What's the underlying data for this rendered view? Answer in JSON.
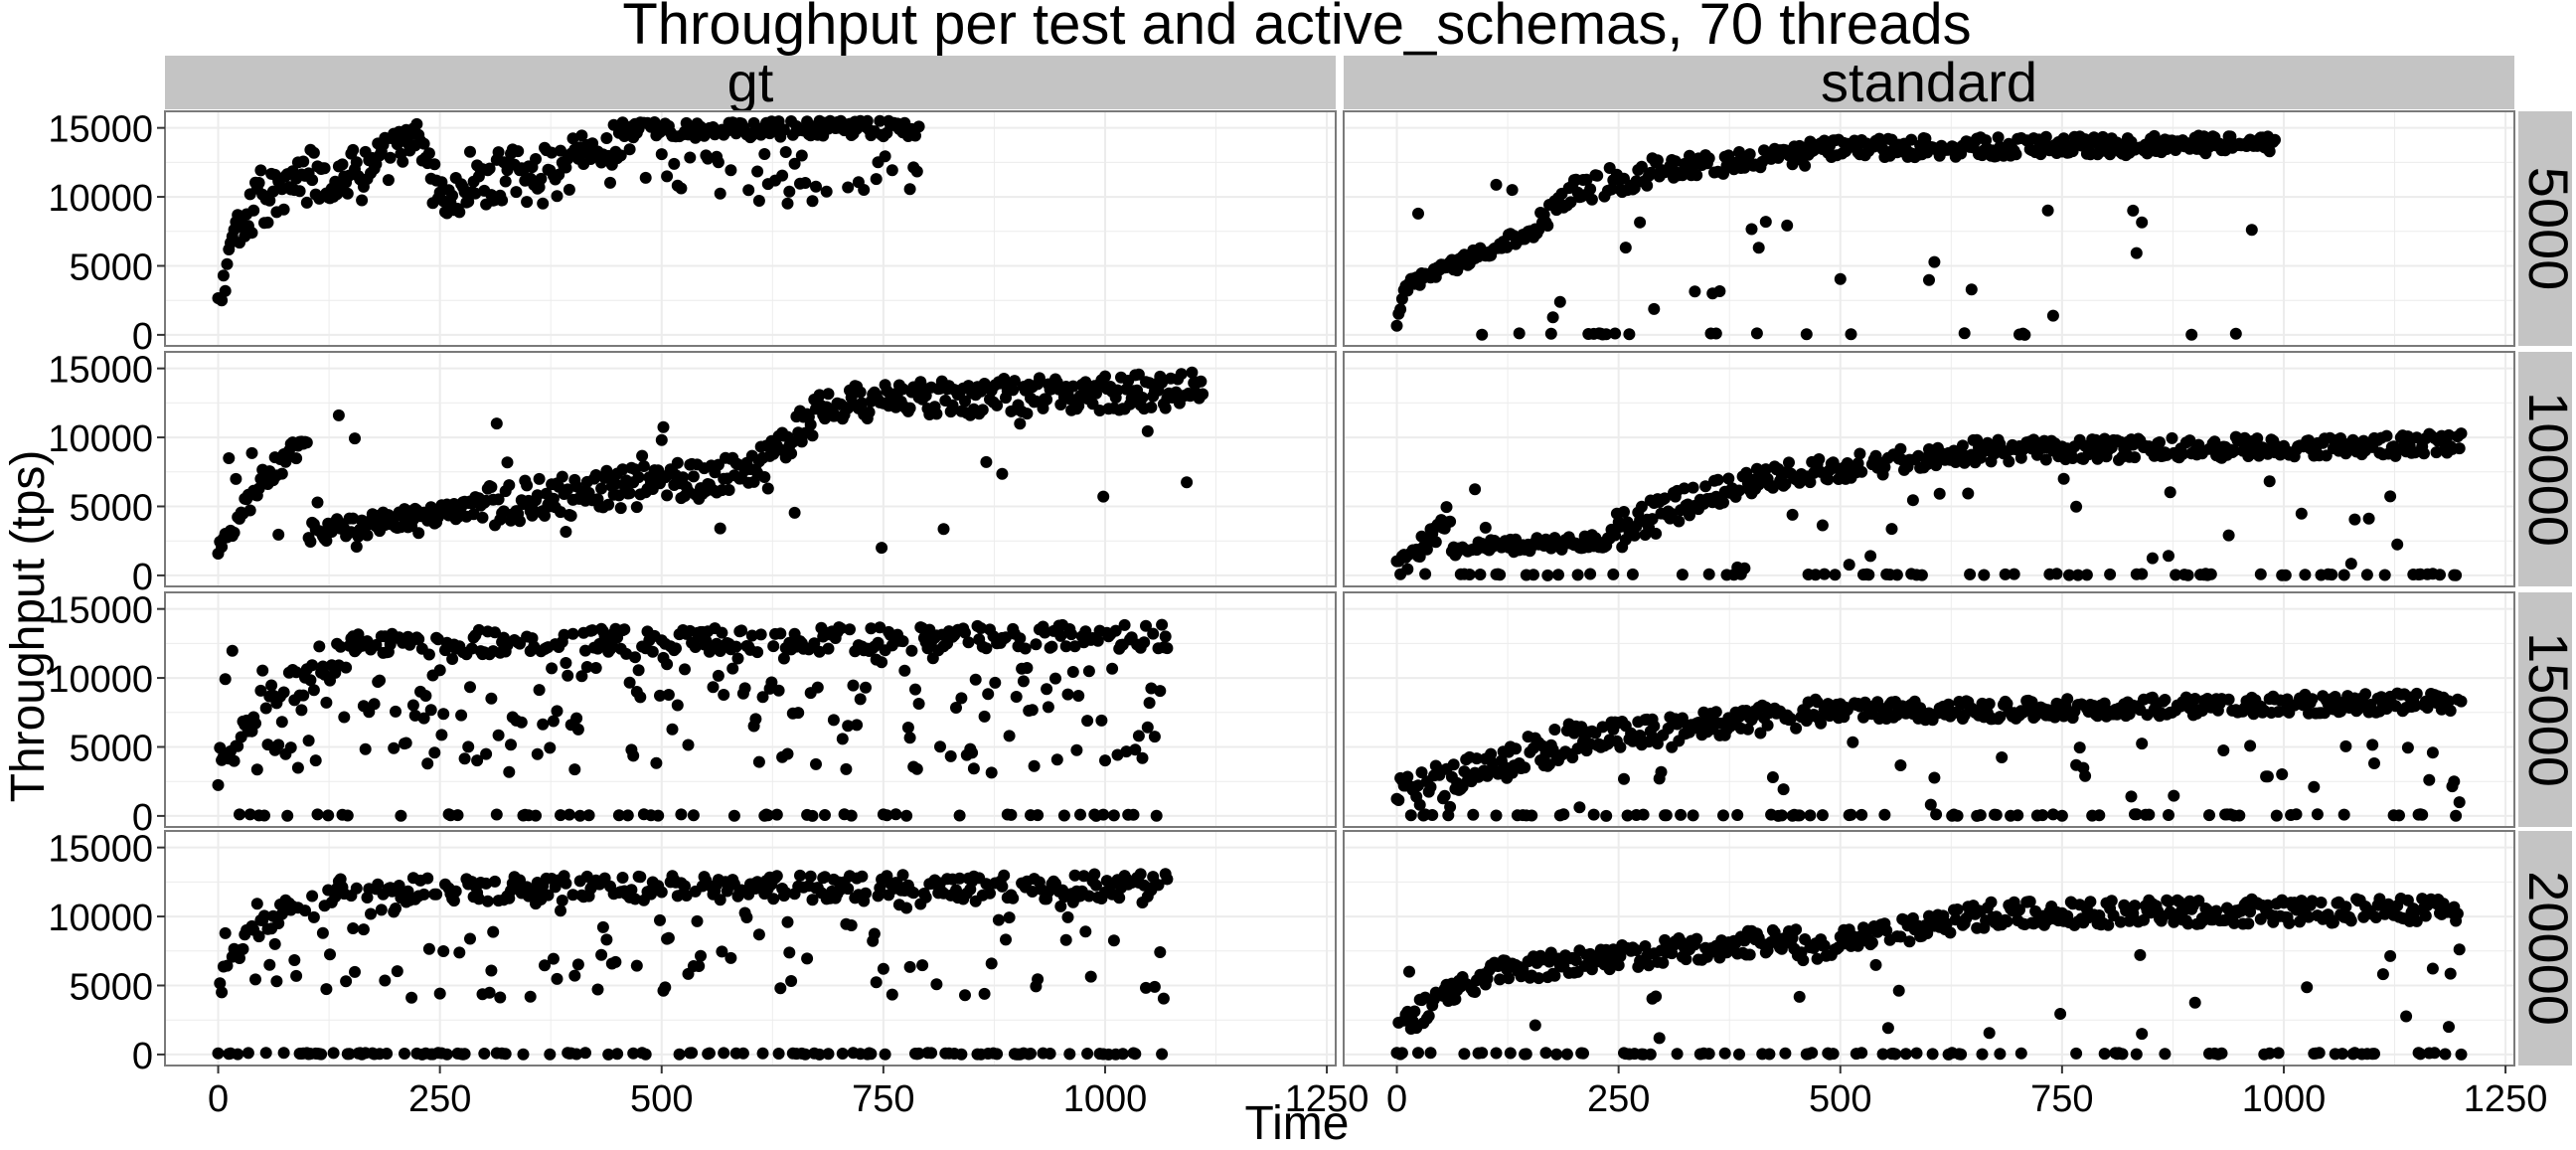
{
  "chart_data": {
    "type": "scatter",
    "title": "Throughput per test and active_schemas, 70 threads",
    "xlabel": "Time",
    "ylabel": "Throughput (tps)",
    "xlim": [
      -60,
      1260
    ],
    "ylim": [
      -800,
      16200
    ],
    "x_ticks": [
      0,
      250,
      500,
      750,
      1000,
      1250
    ],
    "y_ticks": [
      0,
      5000,
      10000,
      15000
    ],
    "grid": true,
    "facet_columns": [
      "gt",
      "standard"
    ],
    "facet_rows": [
      "5000",
      "10000",
      "15000",
      "20000"
    ],
    "marker_color": "#000000",
    "panel_background": "#ffffff",
    "strip_color": "#c4c4c4",
    "grid_color": "#ececec",
    "panels": [
      {
        "column": "gt",
        "row": "5000",
        "x_max": 790,
        "segments": [
          {
            "from": 0,
            "to": 20,
            "y_start": 1500,
            "y_end": 8500,
            "noise": 1200
          },
          {
            "from": 20,
            "to": 60,
            "y_start": 7500,
            "y_end": 9500,
            "noise": 1200
          },
          {
            "from": 60,
            "to": 120,
            "y_start": 9500,
            "y_end": 13200,
            "noise": 1300
          },
          {
            "from": 120,
            "to": 150,
            "y_start": 10000,
            "y_end": 12500,
            "noise": 1200
          },
          {
            "from": 150,
            "to": 230,
            "y_start": 12000,
            "y_end": 14500,
            "noise": 1200
          },
          {
            "from": 230,
            "to": 250,
            "y_start": 13500,
            "y_end": 10500,
            "noise": 1000
          },
          {
            "from": 250,
            "to": 450,
            "y_start": 9500,
            "y_end": 14000,
            "noise": 1500
          },
          {
            "from": 450,
            "to": 790,
            "y_start": 14800,
            "y_end": 15000,
            "noise": 600
          }
        ],
        "outlier_rate": 0.22,
        "outlier_range": [
          9500,
          13500
        ],
        "zero_rate": 0,
        "step": 2
      },
      {
        "column": "standard",
        "row": "5000",
        "x_max": 990,
        "segments": [
          {
            "from": 0,
            "to": 10,
            "y_start": 800,
            "y_end": 3500,
            "noise": 300
          },
          {
            "from": 10,
            "to": 150,
            "y_start": 3500,
            "y_end": 7500,
            "noise": 500
          },
          {
            "from": 150,
            "to": 200,
            "y_start": 7500,
            "y_end": 10500,
            "noise": 800
          },
          {
            "from": 200,
            "to": 300,
            "y_start": 10500,
            "y_end": 12000,
            "noise": 1000
          },
          {
            "from": 300,
            "to": 460,
            "y_start": 12000,
            "y_end": 13000,
            "noise": 800
          },
          {
            "from": 460,
            "to": 990,
            "y_start": 13500,
            "y_end": 13800,
            "noise": 700
          }
        ],
        "outlier_rate": 0.04,
        "outlier_range": [
          1000,
          11000
        ],
        "zero_rate": 0.05,
        "step": 2
      },
      {
        "column": "gt",
        "row": "10000",
        "x_max": 1110,
        "segments": [
          {
            "from": 0,
            "to": 50,
            "y_start": 1500,
            "y_end": 7000,
            "noise": 800
          },
          {
            "from": 50,
            "to": 100,
            "y_start": 7000,
            "y_end": 10000,
            "noise": 1000
          },
          {
            "from": 100,
            "to": 300,
            "y_start": 3000,
            "y_end": 5000,
            "noise": 800
          },
          {
            "from": 300,
            "to": 600,
            "y_start": 5000,
            "y_end": 7500,
            "noise": 1500
          },
          {
            "from": 600,
            "to": 700,
            "y_start": 7500,
            "y_end": 13000,
            "noise": 1300
          },
          {
            "from": 700,
            "to": 1110,
            "y_start": 12500,
            "y_end": 13500,
            "noise": 1300
          }
        ],
        "outlier_rate": 0.06,
        "outlier_range": [
          2000,
          13000
        ],
        "zero_rate": 0,
        "step": 2
      },
      {
        "column": "standard",
        "row": "10000",
        "x_max": 1200,
        "segments": [
          {
            "from": 0,
            "to": 60,
            "y_start": 500,
            "y_end": 4000,
            "noise": 800
          },
          {
            "from": 60,
            "to": 240,
            "y_start": 2000,
            "y_end": 2500,
            "noise": 500
          },
          {
            "from": 240,
            "to": 400,
            "y_start": 3000,
            "y_end": 7000,
            "noise": 1300
          },
          {
            "from": 400,
            "to": 660,
            "y_start": 7000,
            "y_end": 9000,
            "noise": 900
          },
          {
            "from": 660,
            "to": 1200,
            "y_start": 9000,
            "y_end": 9500,
            "noise": 800
          }
        ],
        "outlier_rate": 0.05,
        "outlier_range": [
          500,
          7000
        ],
        "zero_rate": 0.12,
        "step": 2
      },
      {
        "column": "gt",
        "row": "15000",
        "x_max": 1070,
        "segments": [
          {
            "from": 0,
            "to": 60,
            "y_start": 3000,
            "y_end": 9000,
            "noise": 1000
          },
          {
            "from": 60,
            "to": 150,
            "y_start": 9000,
            "y_end": 12000,
            "noise": 1500
          },
          {
            "from": 150,
            "to": 1070,
            "y_start": 12500,
            "y_end": 13000,
            "noise": 900
          }
        ],
        "outlier_rate": 0.3,
        "outlier_range": [
          3000,
          12000
        ],
        "zero_rate": 0.13,
        "step": 2
      },
      {
        "column": "standard",
        "row": "15000",
        "x_max": 1200,
        "segments": [
          {
            "from": 0,
            "to": 200,
            "y_start": 1500,
            "y_end": 5500,
            "noise": 1300
          },
          {
            "from": 200,
            "to": 480,
            "y_start": 5500,
            "y_end": 7500,
            "noise": 1000
          },
          {
            "from": 480,
            "to": 1200,
            "y_start": 7500,
            "y_end": 8300,
            "noise": 700
          }
        ],
        "outlier_rate": 0.06,
        "outlier_range": [
          500,
          5500
        ],
        "zero_rate": 0.12,
        "step": 2
      },
      {
        "column": "gt",
        "row": "20000",
        "x_max": 1070,
        "segments": [
          {
            "from": 0,
            "to": 40,
            "y_start": 5000,
            "y_end": 9000,
            "noise": 1000
          },
          {
            "from": 40,
            "to": 150,
            "y_start": 9000,
            "y_end": 12000,
            "noise": 1200
          },
          {
            "from": 150,
            "to": 1070,
            "y_start": 12000,
            "y_end": 12200,
            "noise": 900
          }
        ],
        "outlier_rate": 0.2,
        "outlier_range": [
          4000,
          11500
        ],
        "zero_rate": 0.22,
        "step": 2
      },
      {
        "column": "standard",
        "row": "20000",
        "x_max": 1200,
        "segments": [
          {
            "from": 0,
            "to": 100,
            "y_start": 2000,
            "y_end": 6000,
            "noise": 1000
          },
          {
            "from": 100,
            "to": 450,
            "y_start": 6000,
            "y_end": 8500,
            "noise": 900
          },
          {
            "from": 450,
            "to": 700,
            "y_start": 7500,
            "y_end": 10500,
            "noise": 900
          },
          {
            "from": 700,
            "to": 1200,
            "y_start": 10200,
            "y_end": 10500,
            "noise": 900
          }
        ],
        "outlier_rate": 0.04,
        "outlier_range": [
          1000,
          8500
        ],
        "zero_rate": 0.14,
        "step": 2
      }
    ]
  }
}
